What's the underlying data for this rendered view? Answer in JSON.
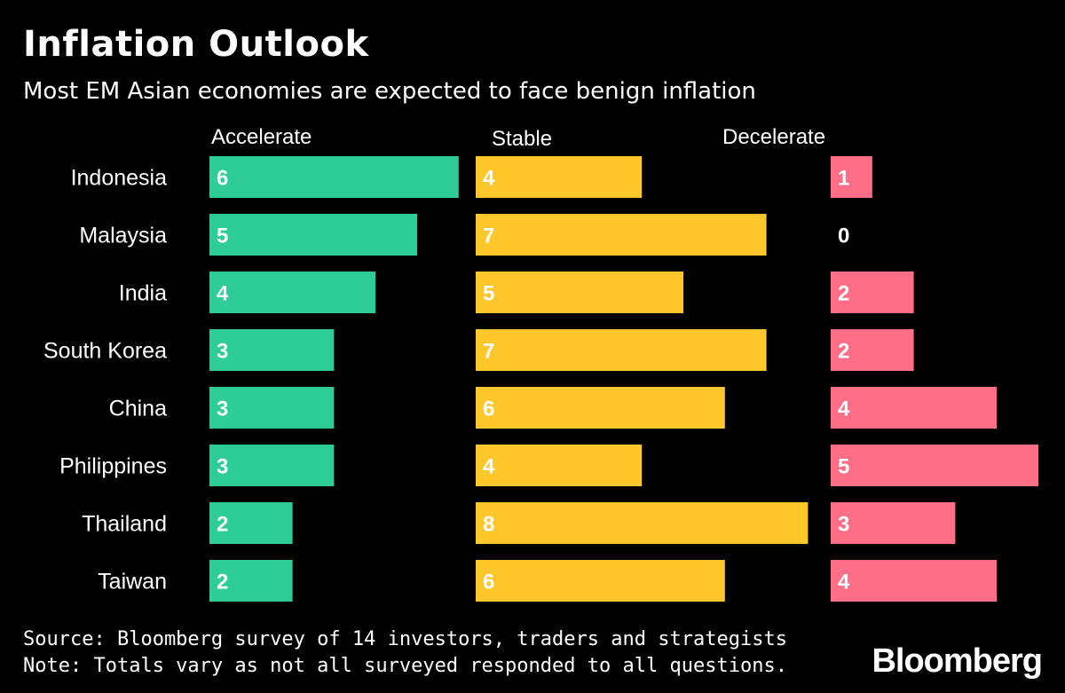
{
  "title": "Inflation Outlook",
  "subtitle": "Most EM Asian economies are expected to face benign inflation",
  "chart_data": {
    "type": "bar",
    "orientation": "horizontal",
    "layout": "small-multiples",
    "categories": [
      "Indonesia",
      "Malaysia",
      "India",
      "South Korea",
      "China",
      "Philippines",
      "Thailand",
      "Taiwan"
    ],
    "series": [
      {
        "name": "Accelerate",
        "color": "#2ecc96",
        "values": [
          6,
          5,
          4,
          3,
          3,
          3,
          2,
          2
        ]
      },
      {
        "name": "Stable",
        "color": "#ffc72c",
        "values": [
          4,
          7,
          5,
          7,
          6,
          4,
          8,
          6
        ]
      },
      {
        "name": "Decelerate",
        "color": "#ff6e87",
        "values": [
          1,
          0,
          2,
          2,
          4,
          5,
          3,
          4
        ]
      }
    ],
    "grid": false,
    "legend": "none"
  },
  "footer": {
    "source": "Source: Bloomberg survey of 14 investors, traders and strategists",
    "note": "Note: Totals vary as not all surveyed responded to all questions."
  },
  "brand": "Bloomberg"
}
